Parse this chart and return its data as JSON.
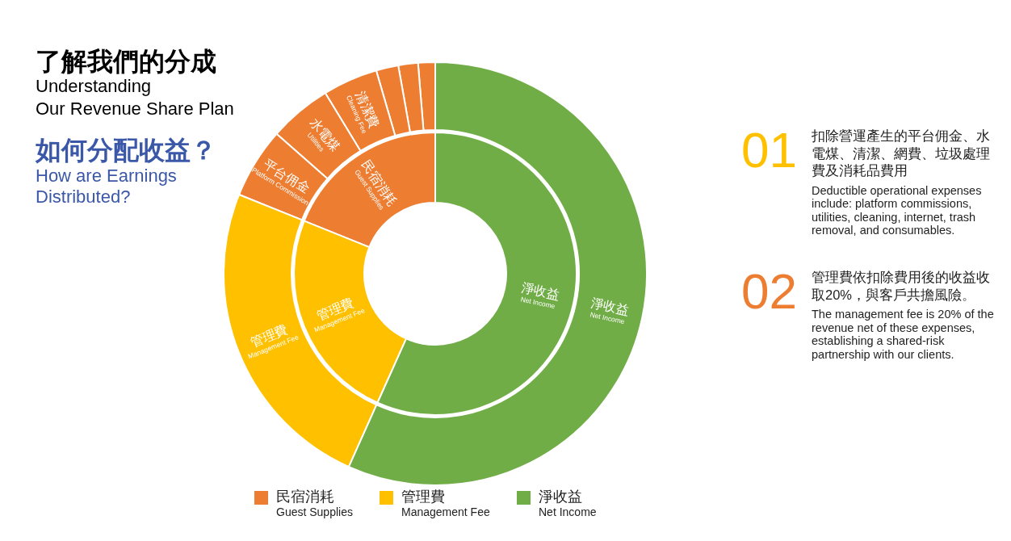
{
  "chart_data": [
    {
      "type": "donut",
      "title": "了解我們的分成\nUnderstanding\nOur Revenue Share Plan",
      "subtitle": "如何分配收益？\nHow are Earnings\nDistributed?",
      "categories": [
        "民宿消耗\nGuest Supplies",
        "管理費\nManagement Fee",
        "淨收益\nNet Income"
      ],
      "values": [
        18.9,
        24.4,
        56.7
      ],
      "colors": [
        "#ed7d31",
        "#ffc000",
        "#70ad47"
      ],
      "legend": "bottom"
    },
    {
      "type": "donut",
      "categories": [
        null,
        null,
        null,
        "清潔費\nCleaning Fee",
        "水電煤\nUtilities",
        "平台佣金\nPlatform Commission",
        "管理費\nManagement Fee",
        "淨收益\nNet Income"
      ],
      "values": [
        1.3,
        1.5,
        1.7,
        4.2,
        4.8,
        5.4,
        24.4,
        56.7
      ],
      "colors": [
        "#ed7d31",
        "#ed7d31",
        "#ed7d31",
        "#ed7d31",
        "#ed7d31",
        "#ed7d31",
        "#ffc000",
        "#70ad47"
      ]
    },
    {
      "type": "other",
      "annotations": [
        "01",
        "扣除營運產生的平台佣金、水電煤、清潔、網費、垃圾處理費及消耗品費用",
        "Deductible operational expenses include: platform commissions, utilities, cleaning, internet, trash removal, and consumables.",
        "02",
        "管理費依扣除費用後的收益收取20%，與客戶共擔風險。",
        "The management fee is 20% of the revenue net of these expenses, establishing a shared-risk partnership with our clients."
      ]
    }
  ]
}
